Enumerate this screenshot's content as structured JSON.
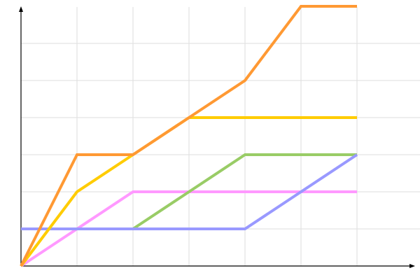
{
  "chart_data": {
    "type": "line",
    "title": "",
    "xlabel": "",
    "ylabel": "",
    "xlim": [
      0,
      7
    ],
    "ylim": [
      0,
      7
    ],
    "x_gridlines": [
      1,
      2,
      3,
      4,
      5,
      6
    ],
    "y_gridlines": [
      1,
      2,
      3,
      4,
      5,
      6
    ],
    "grid": true,
    "grid_color": "#dddddd",
    "series": [
      {
        "color": "#ff99ff",
        "points": [
          [
            0,
            0
          ],
          [
            1,
            1
          ],
          [
            2,
            2
          ],
          [
            3,
            2
          ],
          [
            4,
            2
          ],
          [
            5,
            2
          ],
          [
            6,
            2
          ]
        ]
      },
      {
        "color": "#99cc66",
        "points": [
          [
            2,
            1
          ],
          [
            3,
            2
          ],
          [
            4,
            3
          ],
          [
            5,
            3
          ],
          [
            6,
            3
          ]
        ]
      },
      {
        "color": "#9999ff",
        "points": [
          [
            0,
            1
          ],
          [
            1,
            1
          ],
          [
            2,
            1
          ],
          [
            3,
            1
          ],
          [
            4,
            1
          ],
          [
            5,
            2
          ],
          [
            6,
            3
          ]
        ]
      },
      {
        "color": "#ffcc00",
        "points": [
          [
            0,
            0
          ],
          [
            1,
            2
          ],
          [
            2,
            3
          ],
          [
            3,
            4
          ],
          [
            4,
            4
          ],
          [
            5,
            4
          ],
          [
            6,
            4
          ]
        ]
      },
      {
        "color": "#ff9933",
        "points": [
          [
            0,
            0
          ],
          [
            1,
            3
          ],
          [
            2,
            3
          ],
          [
            3,
            4
          ],
          [
            4,
            5
          ],
          [
            5,
            7
          ],
          [
            6,
            7
          ]
        ]
      }
    ]
  }
}
